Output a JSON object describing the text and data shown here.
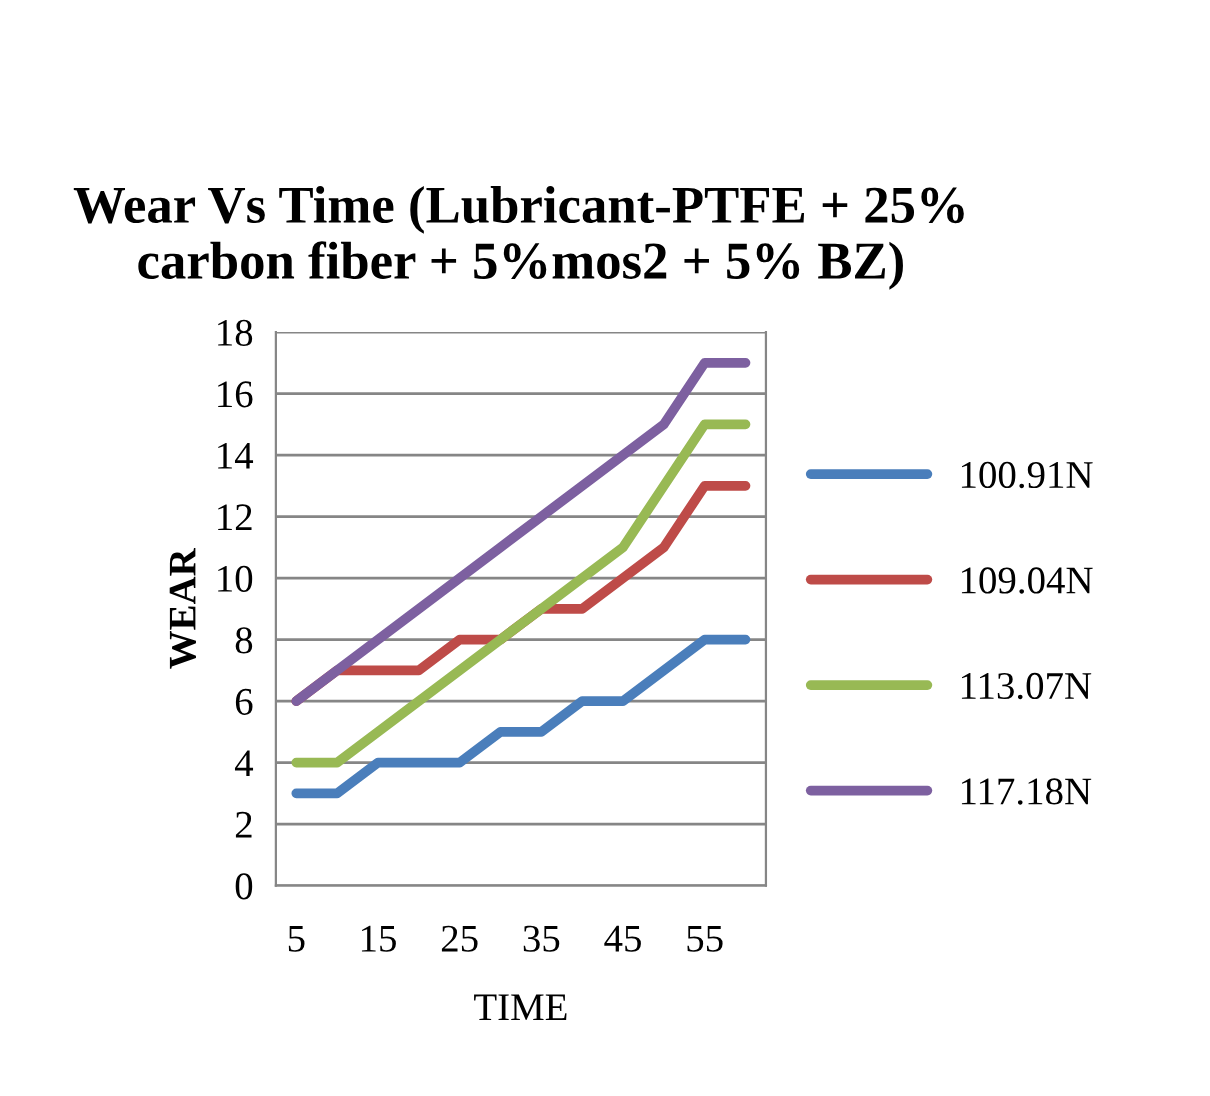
{
  "chart_data": {
    "type": "line",
    "title": "Wear Vs Time (Lubricant-PTFE + 25% carbon fiber + 5%mos2 + 5% BZ)",
    "xlabel": "TIME",
    "ylabel": "WEAR",
    "categories": [
      "5",
      null,
      "15",
      null,
      "25",
      null,
      "35",
      null,
      "45",
      null,
      "55",
      null
    ],
    "series": [
      {
        "name": "100.91N",
        "color": "#4a7ebb",
        "values": [
          3,
          3,
          4,
          4,
          4,
          5,
          5,
          6,
          6,
          7,
          8,
          8
        ]
      },
      {
        "name": "109.04N",
        "color": "#be4b48",
        "values": [
          6,
          7,
          7,
          7,
          8,
          8,
          9,
          9,
          10,
          11,
          13,
          13
        ]
      },
      {
        "name": "113.07N",
        "color": "#98b954",
        "values": [
          4,
          4,
          5,
          6,
          7,
          8,
          9,
          10,
          11,
          13,
          15,
          15
        ]
      },
      {
        "name": "117.18N",
        "color": "#7d60a0",
        "values": [
          6,
          7,
          8,
          9,
          10,
          11,
          12,
          13,
          14,
          15,
          17,
          17
        ]
      }
    ],
    "ylim": [
      0,
      18
    ],
    "yticks": [
      0,
      2,
      4,
      6,
      8,
      10,
      12,
      14,
      16,
      18
    ],
    "grid": "y",
    "legend": "right"
  }
}
